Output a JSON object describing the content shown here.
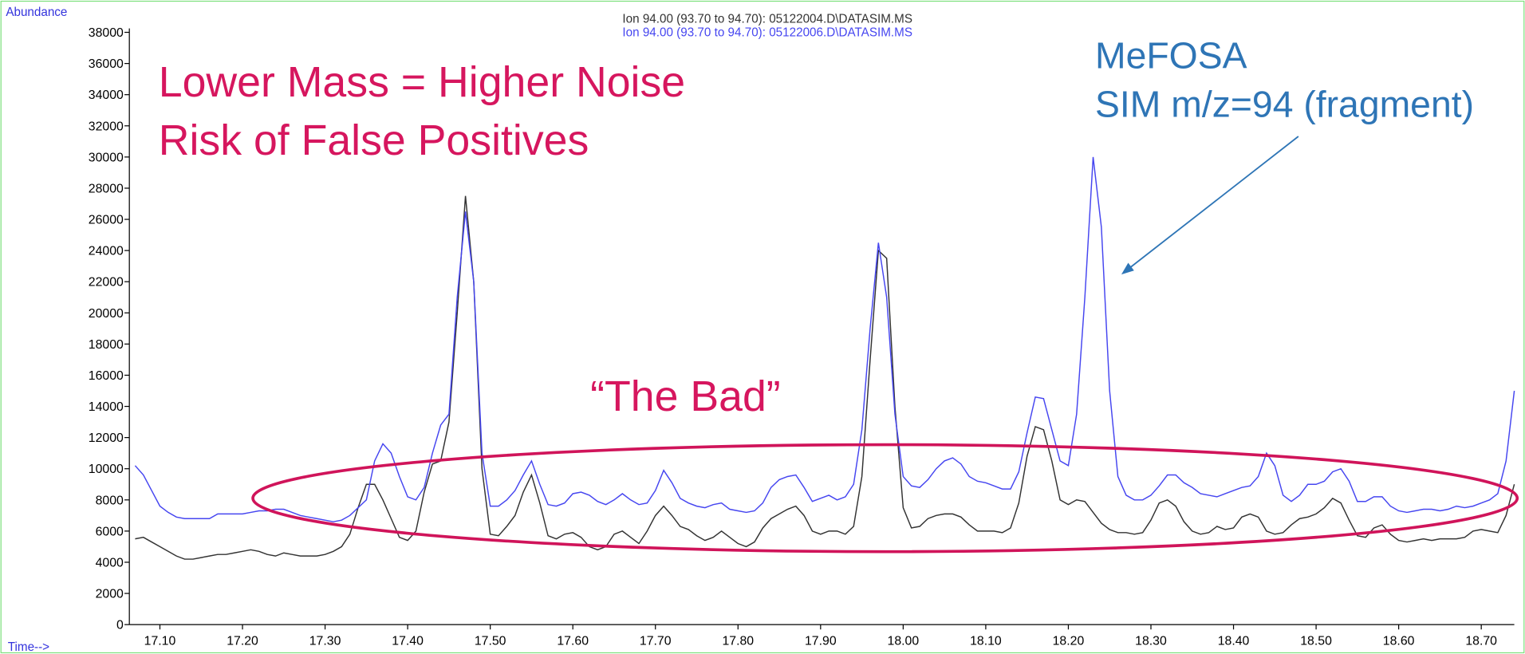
{
  "chart_data": {
    "type": "line",
    "ylabel": "Abundance",
    "xlabel": "Time-->",
    "annotations": [
      "Lower Mass = Higher Noise",
      "Risk of False Positives",
      "“The Bad”",
      "MeFOSA",
      "SIM m/z=94 (fragment)"
    ],
    "xlim": [
      17.063,
      18.74
    ],
    "ylim": [
      0,
      38000
    ],
    "xticks": [
      {
        "value": 17.1,
        "label": "17.10"
      },
      {
        "value": 17.2,
        "label": "17.20"
      },
      {
        "value": 17.3,
        "label": "17.30"
      },
      {
        "value": 17.4,
        "label": "17.40"
      },
      {
        "value": 17.5,
        "label": "17.50"
      },
      {
        "value": 17.6,
        "label": "17.60"
      },
      {
        "value": 17.7,
        "label": "17.70"
      },
      {
        "value": 17.8,
        "label": "17.80"
      },
      {
        "value": 17.9,
        "label": "17.90"
      },
      {
        "value": 18.0,
        "label": "18.00"
      },
      {
        "value": 18.1,
        "label": "18.10"
      },
      {
        "value": 18.2,
        "label": "18.20"
      },
      {
        "value": 18.3,
        "label": "18.30"
      },
      {
        "value": 18.4,
        "label": "18.40"
      },
      {
        "value": 18.5,
        "label": "18.50"
      },
      {
        "value": 18.6,
        "label": "18.60"
      },
      {
        "value": 18.7,
        "label": "18.70"
      }
    ],
    "yticks": [
      0,
      2000,
      4000,
      6000,
      8000,
      10000,
      12000,
      14000,
      16000,
      18000,
      20000,
      22000,
      24000,
      26000,
      28000,
      30000,
      32000,
      34000,
      36000,
      38000
    ],
    "x": [
      17.07,
      17.08,
      17.09,
      17.1,
      17.11,
      17.12,
      17.13,
      17.14,
      17.15,
      17.16,
      17.17,
      17.18,
      17.19,
      17.2,
      17.21,
      17.22,
      17.23,
      17.24,
      17.25,
      17.26,
      17.27,
      17.28,
      17.29,
      17.3,
      17.31,
      17.32,
      17.33,
      17.34,
      17.35,
      17.36,
      17.37,
      17.38,
      17.39,
      17.4,
      17.41,
      17.42,
      17.43,
      17.44,
      17.45,
      17.46,
      17.47,
      17.48,
      17.49,
      17.5,
      17.51,
      17.52,
      17.53,
      17.54,
      17.55,
      17.56,
      17.57,
      17.58,
      17.59,
      17.6,
      17.61,
      17.62,
      17.63,
      17.64,
      17.65,
      17.66,
      17.67,
      17.68,
      17.69,
      17.7,
      17.71,
      17.72,
      17.73,
      17.74,
      17.75,
      17.76,
      17.77,
      17.78,
      17.79,
      17.8,
      17.81,
      17.82,
      17.83,
      17.84,
      17.85,
      17.86,
      17.87,
      17.88,
      17.89,
      17.9,
      17.91,
      17.92,
      17.93,
      17.94,
      17.95,
      17.96,
      17.97,
      17.98,
      17.99,
      18.0,
      18.01,
      18.02,
      18.03,
      18.04,
      18.05,
      18.06,
      18.07,
      18.08,
      18.09,
      18.1,
      18.11,
      18.12,
      18.13,
      18.14,
      18.15,
      18.16,
      18.17,
      18.18,
      18.19,
      18.2,
      18.21,
      18.22,
      18.23,
      18.24,
      18.25,
      18.26,
      18.27,
      18.28,
      18.29,
      18.3,
      18.31,
      18.32,
      18.33,
      18.34,
      18.35,
      18.36,
      18.37,
      18.38,
      18.39,
      18.4,
      18.41,
      18.42,
      18.43,
      18.44,
      18.45,
      18.46,
      18.47,
      18.48,
      18.49,
      18.5,
      18.51,
      18.52,
      18.53,
      18.54,
      18.55,
      18.56,
      18.57,
      18.58,
      18.59,
      18.6,
      18.61,
      18.62,
      18.63,
      18.64,
      18.65,
      18.66,
      18.67,
      18.68,
      18.69,
      18.7,
      18.71,
      18.72,
      18.73,
      18.74
    ],
    "series": [
      {
        "name": "Ion  94.00 (93.70 to 94.70): 05122004.D\\DATASIM.MS",
        "color": "#333333",
        "values": [
          5500,
          5600,
          5300,
          5000,
          4700,
          4400,
          4200,
          4200,
          4300,
          4400,
          4500,
          4500,
          4600,
          4700,
          4800,
          4700,
          4500,
          4400,
          4600,
          4500,
          4400,
          4400,
          4400,
          4500,
          4700,
          5000,
          5800,
          7500,
          9000,
          9000,
          8000,
          6800,
          5600,
          5400,
          6000,
          8500,
          10300,
          10500,
          13000,
          20000,
          27500,
          22000,
          10000,
          5800,
          5700,
          6300,
          7000,
          8500,
          9600,
          7800,
          5700,
          5500,
          5800,
          5900,
          5600,
          5000,
          4800,
          5000,
          5800,
          6000,
          5600,
          5200,
          6000,
          7000,
          7600,
          7000,
          6300,
          6100,
          5700,
          5400,
          5600,
          6000,
          5600,
          5200,
          5000,
          5300,
          6200,
          6800,
          7100,
          7400,
          7600,
          7000,
          6000,
          5800,
          6000,
          6000,
          5800,
          6300,
          9500,
          17000,
          24000,
          23500,
          14000,
          7500,
          6200,
          6300,
          6800,
          7000,
          7100,
          7100,
          6900,
          6400,
          6000,
          6000,
          6000,
          5900,
          6200,
          7800,
          10800,
          12700,
          12500,
          10500,
          8000,
          7700,
          8000,
          7900,
          7200,
          6500,
          6100,
          5900,
          5900,
          5800,
          5900,
          6700,
          7800,
          8000,
          7600,
          6600,
          6000,
          5800,
          5900,
          6300,
          6100,
          6200,
          6900,
          7100,
          6900,
          6000,
          5800,
          5900,
          6400,
          6800,
          6900,
          7100,
          7500,
          8100,
          7800,
          6700,
          5700,
          5600,
          6200,
          6400,
          5800,
          5400,
          5300,
          5400,
          5500,
          5400,
          5500,
          5500,
          5500,
          5600,
          6000,
          6100,
          6000,
          5900,
          7000,
          9000
        ]
      },
      {
        "name": "Ion  94.00 (93.70 to 94.70): 05122006.D\\DATASIM.MS",
        "color": "#4646f0",
        "values": [
          10200,
          9600,
          8600,
          7600,
          7200,
          6900,
          6800,
          6800,
          6800,
          6800,
          7100,
          7100,
          7100,
          7100,
          7200,
          7300,
          7300,
          7400,
          7400,
          7200,
          7000,
          6900,
          6800,
          6700,
          6600,
          6700,
          7000,
          7500,
          8000,
          10500,
          11600,
          11000,
          9500,
          8200,
          8000,
          8800,
          11000,
          12800,
          13500,
          21000,
          26500,
          22000,
          11000,
          7600,
          7600,
          8000,
          8600,
          9600,
          10500,
          9000,
          7700,
          7600,
          7800,
          8400,
          8500,
          8300,
          7900,
          7700,
          8000,
          8400,
          8000,
          7700,
          7800,
          8600,
          9900,
          9100,
          8100,
          7800,
          7600,
          7500,
          7700,
          7800,
          7400,
          7300,
          7200,
          7300,
          7800,
          8800,
          9300,
          9500,
          9600,
          8800,
          7900,
          8100,
          8300,
          8000,
          8200,
          9000,
          12500,
          19000,
          24500,
          21000,
          13500,
          9500,
          8900,
          8800,
          9300,
          10000,
          10500,
          10700,
          10300,
          9500,
          9200,
          9100,
          8900,
          8700,
          8700,
          9800,
          12300,
          14600,
          14500,
          12500,
          10500,
          10200,
          13500,
          21000,
          30000,
          25500,
          15000,
          9500,
          8300,
          8000,
          8000,
          8300,
          8900,
          9600,
          9600,
          9100,
          8800,
          8400,
          8300,
          8200,
          8400,
          8600,
          8800,
          8900,
          9500,
          11000,
          10200,
          8300,
          7900,
          8300,
          9000,
          9000,
          9200,
          9800,
          10000,
          9200,
          7900,
          7900,
          8200,
          8200,
          7600,
          7300,
          7200,
          7300,
          7400,
          7400,
          7300,
          7400,
          7600,
          7500,
          7600,
          7800,
          8000,
          8400,
          10500,
          15000
        ]
      }
    ]
  }
}
